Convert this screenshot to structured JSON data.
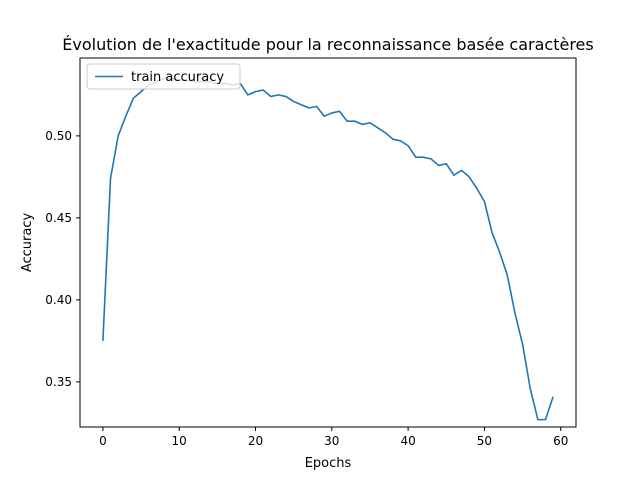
{
  "chart_data": {
    "type": "line",
    "title": "Évolution de l'exactitude pour la reconnaissance basée caractères",
    "xlabel": "Epochs",
    "ylabel": "Accuracy",
    "xlim": [
      -3,
      62
    ],
    "ylim": [
      0.3225,
      0.5475
    ],
    "xticks": [
      0,
      10,
      20,
      30,
      40,
      50,
      60
    ],
    "yticks": [
      0.35,
      0.4,
      0.45,
      0.5
    ],
    "xtick_labels": [
      "0",
      "10",
      "20",
      "30",
      "40",
      "50",
      "60"
    ],
    "ytick_labels": [
      "0.35",
      "0.40",
      "0.45",
      "0.50"
    ],
    "grid": false,
    "legend": {
      "position": "top-left",
      "entries": [
        "train accuracy"
      ]
    },
    "colors": {
      "series": "#1f77b4"
    },
    "series": [
      {
        "name": "train accuracy",
        "x": [
          0,
          1,
          2,
          3,
          4,
          5,
          6,
          7,
          8,
          9,
          10,
          11,
          12,
          13,
          14,
          15,
          16,
          17,
          18,
          19,
          20,
          21,
          22,
          23,
          24,
          25,
          26,
          27,
          28,
          29,
          30,
          31,
          32,
          33,
          34,
          35,
          36,
          37,
          38,
          39,
          40,
          41,
          42,
          43,
          44,
          45,
          46,
          47,
          48,
          49,
          50,
          51,
          52,
          53,
          54,
          55,
          56,
          57,
          58,
          59
        ],
        "values": [
          0.375,
          0.474,
          0.5,
          0.512,
          0.523,
          0.527,
          0.531,
          0.533,
          0.535,
          0.535,
          0.534,
          0.534,
          0.533,
          0.533,
          0.533,
          0.532,
          0.532,
          0.531,
          0.532,
          0.525,
          0.527,
          0.528,
          0.524,
          0.525,
          0.524,
          0.521,
          0.519,
          0.517,
          0.518,
          0.512,
          0.514,
          0.515,
          0.509,
          0.509,
          0.507,
          0.508,
          0.505,
          0.502,
          0.498,
          0.497,
          0.494,
          0.487,
          0.487,
          0.486,
          0.482,
          0.483,
          0.476,
          0.479,
          0.475,
          0.468,
          0.46,
          0.441,
          0.429,
          0.415,
          0.392,
          0.373,
          0.346,
          0.327,
          0.327,
          0.341
        ]
      }
    ]
  }
}
